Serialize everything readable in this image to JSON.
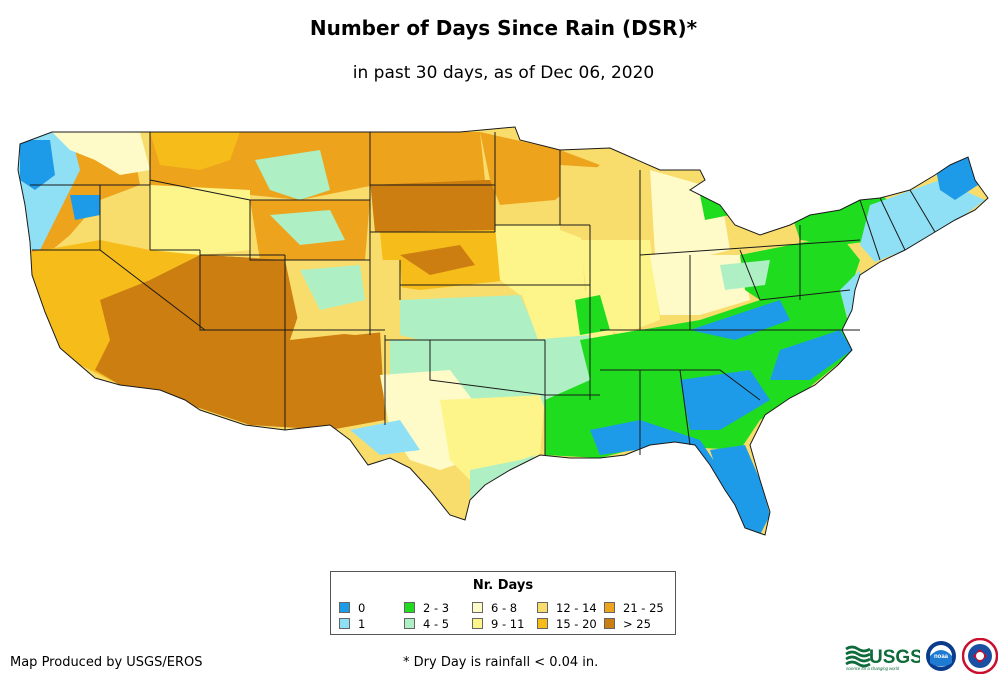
{
  "header": {
    "title": "Number of Days Since Rain (DSR)*",
    "subtitle": "in past 30 days, as of Dec 06, 2020"
  },
  "legend": {
    "title": "Nr. Days",
    "items": [
      {
        "label": "0",
        "color": "#1e9be8"
      },
      {
        "label": "1",
        "color": "#8fe0f5"
      },
      {
        "label": "2 - 3",
        "color": "#1fdc1f"
      },
      {
        "label": "4 - 5",
        "color": "#aef0c3"
      },
      {
        "label": "6 - 8",
        "color": "#fefbc8"
      },
      {
        "label": "9 - 11",
        "color": "#fdf58a"
      },
      {
        "label": "12 - 14",
        "color": "#f9dd6c"
      },
      {
        "label": "15 - 20",
        "color": "#f6bd1a"
      },
      {
        "label": "21 - 25",
        "color": "#eea31d"
      },
      {
        "label": "> 25",
        "color": "#cc7e10"
      }
    ]
  },
  "footer": {
    "credit": "Map Produced by USGS/EROS",
    "footnote": "* Dry Day is rainfall < 0.04 in."
  },
  "logos": {
    "usgs_text": "USGS",
    "usgs_tagline": "science for a changing world",
    "noaa_text": "noaa"
  },
  "colors": {
    "state_border": "#1a1a1a",
    "usgs_green": "#0e6b3a"
  }
}
